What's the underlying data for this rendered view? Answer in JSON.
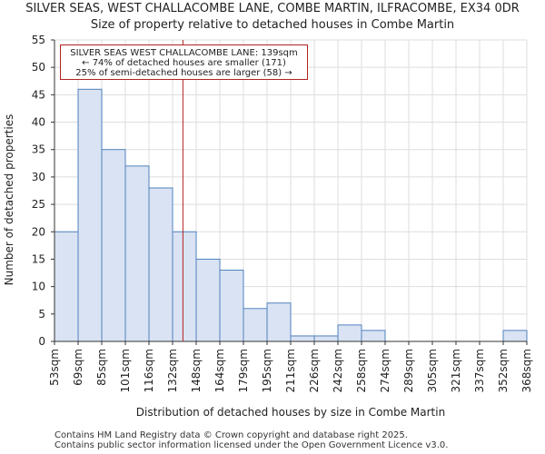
{
  "title": "SILVER SEAS, WEST CHALLACOMBE LANE, COMBE MARTIN, ILFRACOMBE, EX34 0DR",
  "subtitle": "Size of property relative to detached houses in Combe Martin",
  "annotation": {
    "line1": "SILVER SEAS WEST CHALLACOMBE LANE: 139sqm",
    "line2": "← 74% of detached houses are smaller (171)",
    "line3": "25% of semi-detached houses are larger (58) →"
  },
  "footer": {
    "line1": "Contains HM Land Registry data © Crown copyright and database right 2025.",
    "line2": "Contains public sector information licensed under the Open Government Licence v3.0."
  },
  "colors": {
    "bar_fill": "#dae3f3",
    "bar_edge": "#4f81bd",
    "marker": "#b22222",
    "grid": "#dddddd"
  },
  "chart_data": {
    "type": "bar",
    "title": "Size of property relative to detached houses in Combe Martin",
    "xlabel": "Distribution of detached houses by size in Combe Martin",
    "ylabel": "Number of detached properties",
    "bin_edges_labels": [
      "53sqm",
      "69sqm",
      "85sqm",
      "101sqm",
      "116sqm",
      "132sqm",
      "148sqm",
      "164sqm",
      "179sqm",
      "195sqm",
      "211sqm",
      "226sqm",
      "242sqm",
      "258sqm",
      "274sqm",
      "289sqm",
      "305sqm",
      "321sqm",
      "337sqm",
      "352sqm",
      "368sqm"
    ],
    "values": [
      20,
      46,
      35,
      32,
      28,
      20,
      15,
      13,
      6,
      7,
      1,
      1,
      3,
      2,
      0,
      0,
      0,
      0,
      0,
      2
    ],
    "ylim": [
      0,
      55
    ],
    "yticks": [
      0,
      5,
      10,
      15,
      20,
      25,
      30,
      35,
      40,
      45,
      50,
      55
    ],
    "marker_value_sqm": 139,
    "grid": true
  }
}
